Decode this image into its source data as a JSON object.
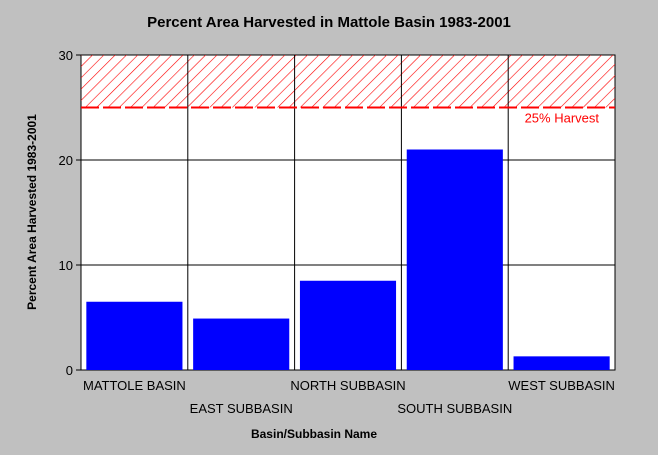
{
  "chart_data": {
    "type": "bar",
    "title": "Percent Area Harvested in Mattole Basin 1983-2001",
    "xlabel": "Basin/Subbasin Name",
    "ylabel": "Percent Area Harvested 1983-2001",
    "categories": [
      "MATTOLE BASIN",
      "EAST SUBBASIN",
      "NORTH SUBBASIN",
      "SOUTH SUBBASIN",
      "WEST SUBBASIN"
    ],
    "values": [
      6.5,
      4.9,
      8.5,
      21.0,
      1.3
    ],
    "ylim": [
      0,
      30
    ],
    "yticks": [
      "0",
      "10",
      "20",
      "30"
    ],
    "grid": true,
    "bar_color": "#0000ff",
    "threshold": {
      "value": 25,
      "label": "25% Harvest",
      "color": "#ff0000",
      "hatch_to": 30
    }
  }
}
